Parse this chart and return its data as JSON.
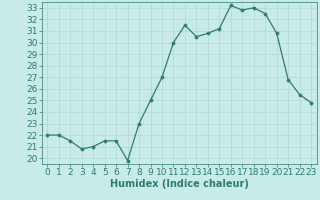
{
  "x": [
    0,
    1,
    2,
    3,
    4,
    5,
    6,
    7,
    8,
    9,
    10,
    11,
    12,
    13,
    14,
    15,
    16,
    17,
    18,
    19,
    20,
    21,
    22,
    23
  ],
  "y": [
    22.0,
    22.0,
    21.5,
    20.8,
    21.0,
    21.5,
    21.5,
    19.8,
    23.0,
    25.0,
    27.0,
    30.0,
    31.5,
    30.5,
    30.8,
    31.2,
    33.2,
    32.8,
    33.0,
    32.5,
    30.8,
    26.8,
    25.5,
    24.8
  ],
  "line_color": "#2e7d6e",
  "marker_color": "#2e7d6e",
  "bg_color": "#c8eae8",
  "grid_color": "#b0d8d4",
  "xlabel": "Humidex (Indice chaleur)",
  "xlim": [
    -0.5,
    23.5
  ],
  "ylim": [
    19.5,
    33.5
  ],
  "yticks": [
    20,
    21,
    22,
    23,
    24,
    25,
    26,
    27,
    28,
    29,
    30,
    31,
    32,
    33
  ],
  "xticks": [
    0,
    1,
    2,
    3,
    4,
    5,
    6,
    7,
    8,
    9,
    10,
    11,
    12,
    13,
    14,
    15,
    16,
    17,
    18,
    19,
    20,
    21,
    22,
    23
  ],
  "label_fontsize": 7,
  "tick_fontsize": 6.5
}
